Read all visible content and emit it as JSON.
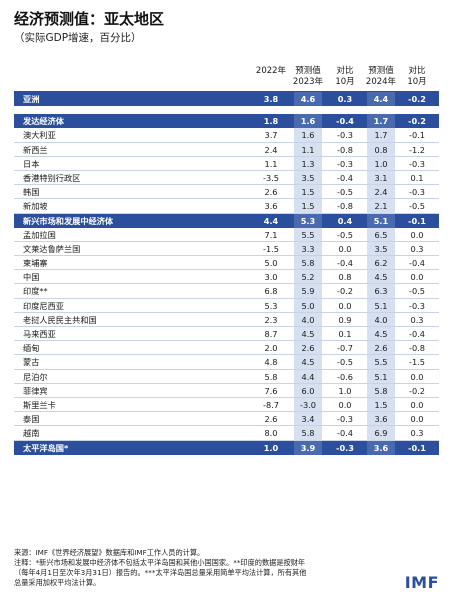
{
  "title": "经济预测值：亚太地区",
  "subtitle": "（实际GDP增速，百分比）",
  "columns": [
    {
      "line1": "",
      "line2": "2022年"
    },
    {
      "line1": "预测值",
      "line2": "2023年"
    },
    {
      "line1": "对比",
      "line2": "10月"
    },
    {
      "line1": "预测值",
      "line2": "2024年"
    },
    {
      "line1": "对比",
      "line2": "10月"
    }
  ],
  "rows": [
    {
      "label": "亚洲",
      "values": [
        "3.8",
        "4.6",
        "0.3",
        "4.4",
        "-0.2"
      ],
      "group": true
    },
    {
      "gap": true
    },
    {
      "label": "发达经济体",
      "values": [
        "1.8",
        "1.6",
        "-0.4",
        "1.7",
        "-0.2"
      ],
      "group": true
    },
    {
      "label": "澳大利亚",
      "values": [
        "3.7",
        "1.6",
        "-0.3",
        "1.7",
        "-0.1"
      ]
    },
    {
      "label": "新西兰",
      "values": [
        "2.4",
        "1.1",
        "-0.8",
        "0.8",
        "-1.2"
      ]
    },
    {
      "label": "日本",
      "values": [
        "1.1",
        "1.3",
        "-0.3",
        "1.0",
        "-0.3"
      ]
    },
    {
      "label": "香港特别行政区",
      "values": [
        "-3.5",
        "3.5",
        "-0.4",
        "3.1",
        "0.1"
      ]
    },
    {
      "label": "韩国",
      "values": [
        "2.6",
        "1.5",
        "-0.5",
        "2.4",
        "-0.3"
      ]
    },
    {
      "label": "新加坡",
      "values": [
        "3.6",
        "1.5",
        "-0.8",
        "2.1",
        "-0.5"
      ]
    },
    {
      "label": "新兴市场和发展中经济体",
      "values": [
        "4.4",
        "5.3",
        "0.4",
        "5.1",
        "-0.1"
      ],
      "group": true
    },
    {
      "label": "孟加拉国",
      "values": [
        "7.1",
        "5.5",
        "-0.5",
        "6.5",
        "0.0"
      ]
    },
    {
      "label": "文莱达鲁萨兰国",
      "values": [
        "-1.5",
        "3.3",
        "0.0",
        "3.5",
        "0.3"
      ]
    },
    {
      "label": "柬埔寨",
      "values": [
        "5.0",
        "5.8",
        "-0.4",
        "6.2",
        "-0.4"
      ]
    },
    {
      "label": "中国",
      "values": [
        "3.0",
        "5.2",
        "0.8",
        "4.5",
        "0.0"
      ]
    },
    {
      "label": "印度**",
      "values": [
        "6.8",
        "5.9",
        "-0.2",
        "6.3",
        "-0.5"
      ]
    },
    {
      "label": "印度尼西亚",
      "values": [
        "5.3",
        "5.0",
        "0.0",
        "5.1",
        "-0.3"
      ]
    },
    {
      "label": "老挝人民民主共和国",
      "values": [
        "2.3",
        "4.0",
        "0.9",
        "4.0",
        "0.3"
      ]
    },
    {
      "label": "马来西亚",
      "values": [
        "8.7",
        "4.5",
        "0.1",
        "4.5",
        "-0.4"
      ]
    },
    {
      "label": "缅甸",
      "values": [
        "2.0",
        "2.6",
        "-0.7",
        "2.6",
        "-0.8"
      ]
    },
    {
      "label": "蒙古",
      "values": [
        "4.8",
        "4.5",
        "-0.5",
        "5.5",
        "-1.5"
      ]
    },
    {
      "label": "尼泊尔",
      "values": [
        "5.8",
        "4.4",
        "-0.6",
        "5.1",
        "0.0"
      ]
    },
    {
      "label": "菲律宾",
      "values": [
        "7.6",
        "6.0",
        "1.0",
        "5.8",
        "-0.2"
      ]
    },
    {
      "label": "斯里兰卡",
      "values": [
        "-8.7",
        "-3.0",
        "0.0",
        "1.5",
        "0.0"
      ]
    },
    {
      "label": "泰国",
      "values": [
        "2.6",
        "3.4",
        "-0.3",
        "3.6",
        "0.0"
      ]
    },
    {
      "label": "越南",
      "values": [
        "8.0",
        "5.8",
        "-0.4",
        "6.9",
        "0.3"
      ]
    },
    {
      "label": "太平洋岛国*",
      "values": [
        "1.0",
        "3.9",
        "-0.3",
        "3.6",
        "-0.1"
      ],
      "group": true
    }
  ],
  "footnotes": [
    "来源：IMF《世界经济展望》数据库和IMF工作人员的计算。",
    "注释：*新兴市场和发展中经济体不包括太平洋岛国和其他小国国家。**印度的数据是按财年",
    "（每年4月1日至次年3月31日）报告的。***太平洋岛国总量采用简单平均法计算，所有其他",
    "总量采用加权平均法计算。"
  ],
  "logo": "IMF",
  "colors": {
    "group_bg": "#2b4f9c",
    "band": "#d7e0f0",
    "rule": "#c9d3e6",
    "logo": "#2b4f9c"
  }
}
